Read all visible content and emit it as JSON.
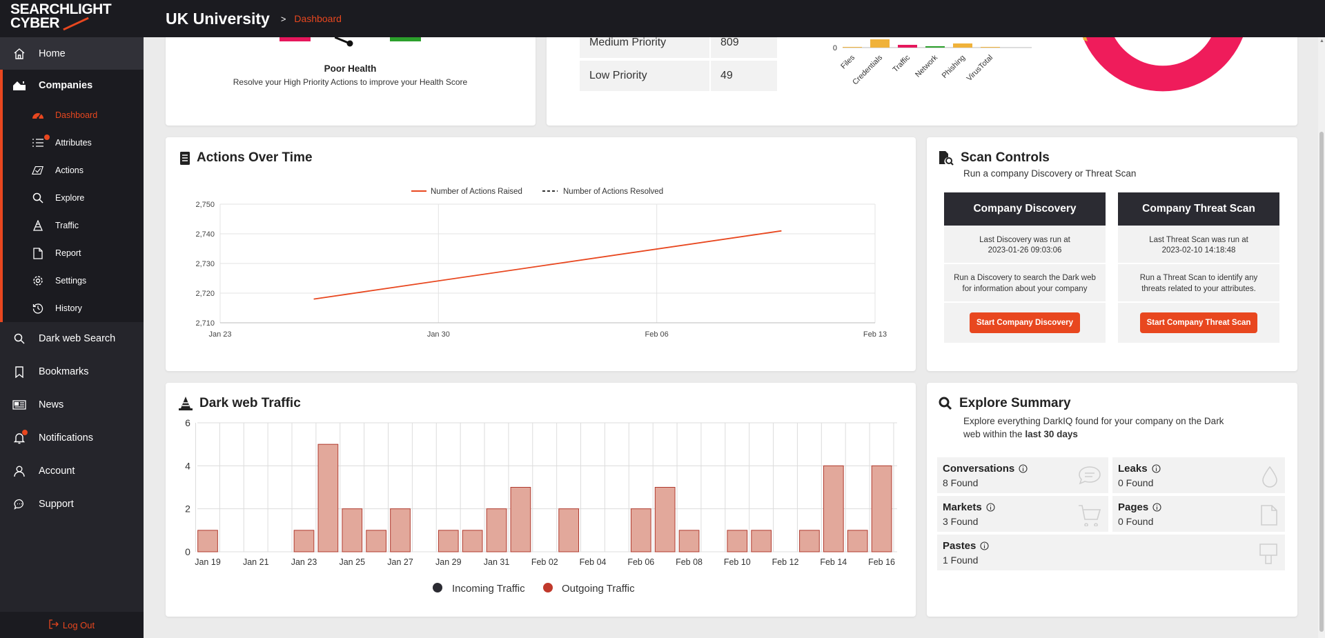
{
  "brand": {
    "line1": "SEARCHLIGHT",
    "line2": "CYBER",
    "accent": "#e8471f"
  },
  "topbar": {
    "title": "UK University",
    "separator": ">",
    "crumb": "Dashboard"
  },
  "sidebar": {
    "home": "Home",
    "companies": "Companies",
    "sub_items": [
      {
        "label": "Dashboard",
        "icon": "gauge-icon",
        "active": true
      },
      {
        "label": "Attributes",
        "icon": "list-icon",
        "badge": true
      },
      {
        "label": "Actions",
        "icon": "actions-icon"
      },
      {
        "label": "Explore",
        "icon": "search-icon"
      },
      {
        "label": "Traffic",
        "icon": "cone-icon"
      },
      {
        "label": "Report",
        "icon": "document-icon"
      },
      {
        "label": "Settings",
        "icon": "gear-icon"
      },
      {
        "label": "History",
        "icon": "history-icon"
      }
    ],
    "bottom_items": [
      {
        "label": "Dark web Search",
        "icon": "search-icon"
      },
      {
        "label": "Bookmarks",
        "icon": "bookmark-icon"
      },
      {
        "label": "News",
        "icon": "newspaper-icon"
      },
      {
        "label": "Notifications",
        "icon": "bell-icon",
        "badge": true
      },
      {
        "label": "Account",
        "icon": "user-icon"
      },
      {
        "label": "Support",
        "icon": "chat-icon"
      }
    ],
    "logout": "Log Out"
  },
  "health": {
    "label": "Poor Health",
    "sub": "Resolve your High Priority Actions to improve your Health Score"
  },
  "priority": [
    {
      "label": "Medium Priority",
      "value": "809"
    },
    {
      "label": "Low Priority",
      "value": "49"
    }
  ],
  "category_chart": {
    "zero_label": "0",
    "categories": [
      "Files",
      "Credentials",
      "Traffic",
      "Network",
      "Phishing",
      "VirusTotal"
    ],
    "colors": [
      "#f0b23a",
      "#f0b23a",
      "#e6175c",
      "#2ca02c",
      "#f0b23a",
      "#f0b23a"
    ]
  },
  "actions_over_time": {
    "title": "Actions Over Time"
  },
  "scan_controls": {
    "title": "Scan Controls",
    "subtitle": "Run a company Discovery or Threat Scan",
    "discovery": {
      "head": "Company Discovery",
      "last_line1": "Last Discovery was run at",
      "last_line2": "2023-01-26 09:03:06",
      "desc_line1": "Run a Discovery to search the Dark web",
      "desc_line2": "for information about your company",
      "button": "Start Company Discovery"
    },
    "threat": {
      "head": "Company Threat Scan",
      "last_line1": "Last Threat Scan was run at",
      "last_line2": "2023-02-10 14:18:48",
      "desc_line1": "Run a Threat Scan to identify any",
      "desc_line2": "threats related to your attributes.",
      "button": "Start Company Threat Scan"
    }
  },
  "dark_web_traffic": {
    "title": "Dark web Traffic"
  },
  "explore_summary": {
    "title": "Explore Summary",
    "desc_line1": "Explore everything DarkIQ found for your company on the Dark",
    "desc_line2_pre": "web within the ",
    "desc_line2_bold": "last 30 days",
    "items": [
      {
        "title": "Conversations",
        "count": "8 Found",
        "icon": "chat-bubble-icon"
      },
      {
        "title": "Leaks",
        "count": "0 Found",
        "icon": "drop-icon"
      },
      {
        "title": "Markets",
        "count": "3 Found",
        "icon": "cart-icon"
      },
      {
        "title": "Pages",
        "count": "0 Found",
        "icon": "page-icon"
      },
      {
        "title": "Pastes",
        "count": "1 Found",
        "icon": "paste-icon"
      }
    ]
  },
  "chart_data": [
    {
      "type": "line",
      "title": "Actions Over Time",
      "x_ticks": [
        "Jan 23",
        "Jan 30",
        "Feb 06",
        "Feb 13"
      ],
      "y_ticks": [
        "2,710",
        "2,720",
        "2,730",
        "2,740",
        "2,750"
      ],
      "ylim": [
        2710,
        2750
      ],
      "xlim": [
        "2023-01-23",
        "2023-02-13"
      ],
      "series": [
        {
          "name": "Number of Actions Raised",
          "color": "#e8471f",
          "style": "solid",
          "points": [
            {
              "x": "2023-01-26",
              "y": 2718
            },
            {
              "x": "2023-02-10",
              "y": 2741
            }
          ]
        },
        {
          "name": "Number of Actions Resolved",
          "color": "#333333",
          "style": "dashed",
          "points": []
        }
      ],
      "legend": "top-center",
      "grid": true
    },
    {
      "type": "bar",
      "title": "Dark web Traffic",
      "categories": [
        "Jan 19",
        "Jan 20",
        "Jan 21",
        "Jan 22",
        "Jan 23",
        "Jan 24",
        "Jan 25",
        "Jan 26",
        "Jan 27",
        "Jan 28",
        "Jan 29",
        "Jan 30",
        "Jan 31",
        "Feb 01",
        "Feb 02",
        "Feb 03",
        "Feb 04",
        "Feb 05",
        "Feb 06",
        "Feb 07",
        "Feb 08",
        "Feb 09",
        "Feb 10",
        "Feb 11",
        "Feb 12",
        "Feb 13",
        "Feb 14",
        "Feb 15",
        "Feb 16"
      ],
      "x_tick_labels": [
        "Jan 19",
        "Jan 21",
        "Jan 23",
        "Jan 25",
        "Jan 27",
        "Jan 29",
        "Jan 31",
        "Feb 02",
        "Feb 04",
        "Feb 06",
        "Feb 08",
        "Feb 10",
        "Feb 12",
        "Feb 14",
        "Feb 16"
      ],
      "y_ticks": [
        "0",
        "2",
        "4",
        "6"
      ],
      "ylim": [
        0,
        6
      ],
      "series": [
        {
          "name": "Incoming Traffic",
          "color": "#2b2b32",
          "values": [
            0,
            0,
            0,
            0,
            0,
            0,
            0,
            0,
            0,
            0,
            0,
            0,
            0,
            0,
            0,
            0,
            0,
            0,
            0,
            0,
            0,
            0,
            0,
            0,
            0,
            0,
            0,
            0,
            0
          ]
        },
        {
          "name": "Outgoing Traffic",
          "color": "#c0392b",
          "values": [
            1,
            0,
            0,
            0,
            1,
            5,
            2,
            1,
            2,
            0,
            1,
            1,
            2,
            3,
            0,
            2,
            0,
            0,
            2,
            3,
            1,
            0,
            1,
            1,
            0,
            1,
            4,
            1,
            4
          ]
        }
      ],
      "legend": "bottom-center",
      "grid": true
    }
  ]
}
